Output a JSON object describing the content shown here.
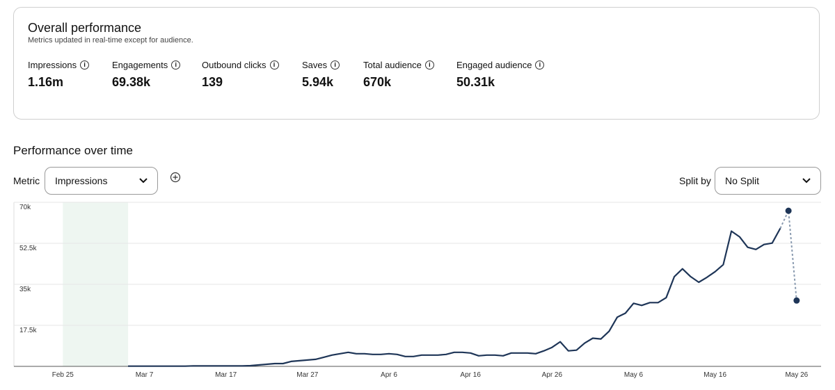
{
  "header": {
    "title": "Overall performance",
    "subtitle": "Metrics updated in real-time except for audience."
  },
  "metrics": [
    {
      "label": "Impressions",
      "value": "1.16m"
    },
    {
      "label": "Engagements",
      "value": "69.38k"
    },
    {
      "label": "Outbound clicks",
      "value": "139"
    },
    {
      "label": "Saves",
      "value": "5.94k"
    },
    {
      "label": "Total audience",
      "value": "670k"
    },
    {
      "label": "Engaged audience",
      "value": "50.31k"
    }
  ],
  "section_title": "Performance over time",
  "controls": {
    "metric_label": "Metric",
    "metric_value": "Impressions",
    "split_label": "Split by",
    "split_value": "No Split"
  },
  "chart_data": {
    "type": "line",
    "color": "#1e3557",
    "estimated_color": "#8a9bb0",
    "highlight": [
      "Feb 25",
      "Mar 5"
    ],
    "highlight_color": "#eef6f1",
    "xlim": [
      "Feb 19",
      "May 29"
    ],
    "xticks": [
      "Feb 25",
      "Mar 7",
      "Mar 17",
      "Mar 27",
      "Apr 6",
      "Apr 16",
      "Apr 26",
      "May 6",
      "May 16",
      "May 26"
    ],
    "ylim": [
      0,
      70000
    ],
    "yticks": [
      {
        "value": 17500,
        "label": "17.5k"
      },
      {
        "value": 35000,
        "label": "35k"
      },
      {
        "value": 52500,
        "label": "52.5k"
      },
      {
        "value": 70000,
        "label": "70k"
      }
    ],
    "grid": true,
    "estimated_points": [
      "May 25",
      "May 26"
    ],
    "x": [
      "Mar 5",
      "Mar 6",
      "Mar 7",
      "Mar 8",
      "Mar 9",
      "Mar 10",
      "Mar 11",
      "Mar 12",
      "Mar 13",
      "Mar 14",
      "Mar 15",
      "Mar 16",
      "Mar 17",
      "Mar 18",
      "Mar 19",
      "Mar 20",
      "Mar 21",
      "Mar 22",
      "Mar 23",
      "Mar 24",
      "Mar 25",
      "Mar 26",
      "Mar 27",
      "Mar 28",
      "Mar 29",
      "Mar 30",
      "Mar 31",
      "Apr 1",
      "Apr 2",
      "Apr 3",
      "Apr 4",
      "Apr 5",
      "Apr 6",
      "Apr 7",
      "Apr 8",
      "Apr 9",
      "Apr 10",
      "Apr 11",
      "Apr 12",
      "Apr 13",
      "Apr 14",
      "Apr 15",
      "Apr 16",
      "Apr 17",
      "Apr 18",
      "Apr 19",
      "Apr 20",
      "Apr 21",
      "Apr 22",
      "Apr 23",
      "Apr 24",
      "Apr 25",
      "Apr 26",
      "Apr 27",
      "Apr 28",
      "Apr 29",
      "Apr 30",
      "May 1",
      "May 2",
      "May 3",
      "May 4",
      "May 5",
      "May 6",
      "May 7",
      "May 8",
      "May 9",
      "May 10",
      "May 11",
      "May 12",
      "May 13",
      "May 14",
      "May 15",
      "May 16",
      "May 17",
      "May 18",
      "May 19",
      "May 20",
      "May 21",
      "May 22",
      "May 23",
      "May 24",
      "May 25",
      "May 26"
    ],
    "values": [
      100,
      100,
      100,
      100,
      100,
      100,
      100,
      100,
      200,
      200,
      200,
      200,
      200,
      200,
      200,
      300,
      600,
      900,
      1200,
      1200,
      2100,
      2400,
      2700,
      3000,
      3900,
      4800,
      5400,
      6000,
      5400,
      5400,
      5100,
      5100,
      5400,
      5100,
      4200,
      4200,
      4800,
      4800,
      4800,
      5100,
      6000,
      6000,
      5700,
      4500,
      4800,
      4800,
      4500,
      5700,
      5700,
      5700,
      5400,
      6600,
      8100,
      10500,
      6600,
      6900,
      9900,
      12000,
      11700,
      15000,
      21000,
      22700,
      26900,
      26000,
      27200,
      27200,
      29300,
      38300,
      41600,
      38300,
      35900,
      38000,
      40400,
      43400,
      57700,
      55300,
      50800,
      49900,
      52000,
      52600,
      58900,
      66400,
      28100
    ]
  }
}
